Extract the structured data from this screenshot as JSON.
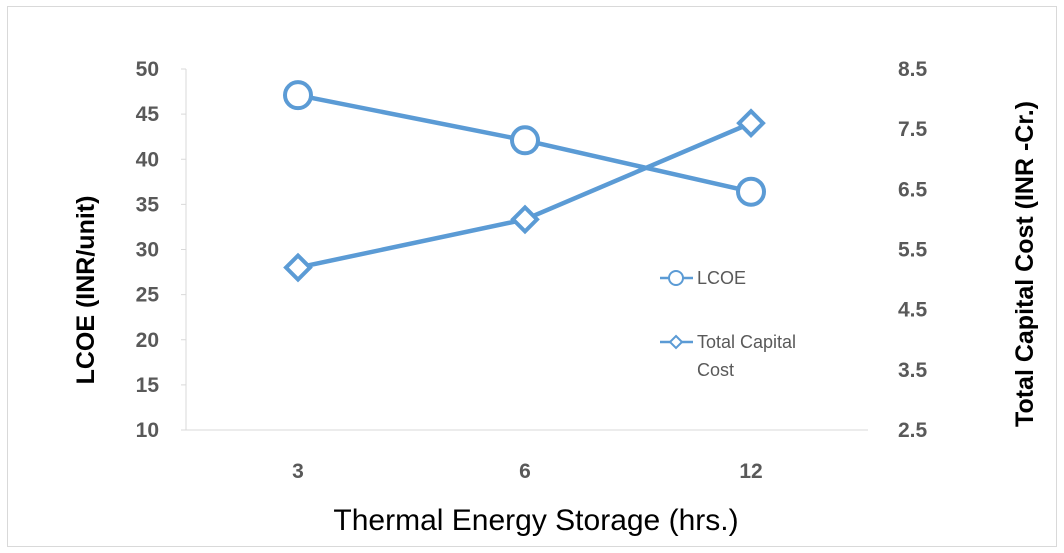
{
  "chart_data": {
    "type": "line",
    "categories": [
      "3",
      "6",
      "12"
    ],
    "xlabel": "Thermal Energy Storage (hrs.)",
    "ylabel": "LCOE (INR/unit)",
    "y2label": "Total Capital Cost (INR -Cr.)",
    "ylim": [
      10,
      50
    ],
    "y2lim": [
      2.5,
      8.5
    ],
    "yticks": [
      "50",
      "45",
      "40",
      "35",
      "30",
      "25",
      "20",
      "15",
      "10"
    ],
    "y2ticks": [
      "8.5",
      "7.5",
      "6.5",
      "5.5",
      "4.5",
      "3.5",
      "2.5"
    ],
    "series": [
      {
        "name": "LCOE",
        "axis": "left",
        "marker": "circle",
        "values": [
          47.1,
          42.1,
          36.4
        ]
      },
      {
        "name": "Total Capital Cost",
        "axis": "right",
        "marker": "diamond",
        "values": [
          5.2,
          6.0,
          7.6
        ]
      }
    ],
    "legend": {
      "position": "right",
      "items": [
        {
          "lines": [
            "LCOE"
          ]
        },
        {
          "lines": [
            "Total Capital",
            "Cost"
          ]
        }
      ]
    },
    "color": "#5b9bd5",
    "axis_color": "#d9d9d9",
    "grid": false
  }
}
